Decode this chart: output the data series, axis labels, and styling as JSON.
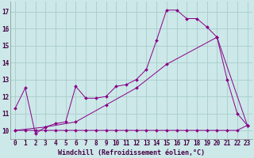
{
  "xlabel": "Windchill (Refroidissement éolien,°C)",
  "background_color": "#cce8e8",
  "grid_color": "#aacccc",
  "line_color": "#880088",
  "xlim": [
    -0.5,
    23.5
  ],
  "ylim": [
    9.5,
    17.6
  ],
  "yticks": [
    10,
    11,
    12,
    13,
    14,
    15,
    16,
    17
  ],
  "xticks": [
    0,
    1,
    2,
    3,
    4,
    5,
    6,
    7,
    8,
    9,
    10,
    11,
    12,
    13,
    14,
    15,
    16,
    17,
    18,
    19,
    20,
    21,
    22,
    23
  ],
  "series1_x": [
    0,
    1,
    2,
    3,
    4,
    5,
    6,
    7,
    8,
    9,
    10,
    11,
    12,
    13,
    14,
    15,
    16,
    17,
    18,
    19,
    20,
    21,
    22,
    23
  ],
  "series1_y": [
    11.3,
    12.5,
    9.8,
    10.2,
    10.4,
    10.5,
    12.6,
    11.9,
    11.9,
    12.0,
    12.6,
    12.7,
    13.0,
    13.6,
    15.3,
    17.1,
    17.1,
    16.6,
    16.6,
    16.1,
    15.5,
    13.0,
    11.0,
    10.3
  ],
  "series2_x": [
    0,
    1,
    2,
    3,
    4,
    5,
    6,
    7,
    8,
    9,
    10,
    11,
    12,
    13,
    14,
    15,
    16,
    17,
    18,
    19,
    20,
    21,
    22,
    23
  ],
  "series2_y": [
    10.0,
    10.0,
    10.0,
    10.0,
    10.0,
    10.0,
    10.0,
    10.0,
    10.0,
    10.0,
    10.0,
    10.0,
    10.0,
    10.0,
    10.0,
    10.0,
    10.0,
    10.0,
    10.0,
    10.0,
    10.0,
    10.0,
    10.0,
    10.3
  ],
  "series3_x": [
    0,
    3,
    6,
    9,
    12,
    15,
    20,
    23
  ],
  "series3_y": [
    10.0,
    10.2,
    10.5,
    11.5,
    12.5,
    13.9,
    15.5,
    10.3
  ],
  "xlabel_fontsize": 6,
  "tick_fontsize": 5.5
}
